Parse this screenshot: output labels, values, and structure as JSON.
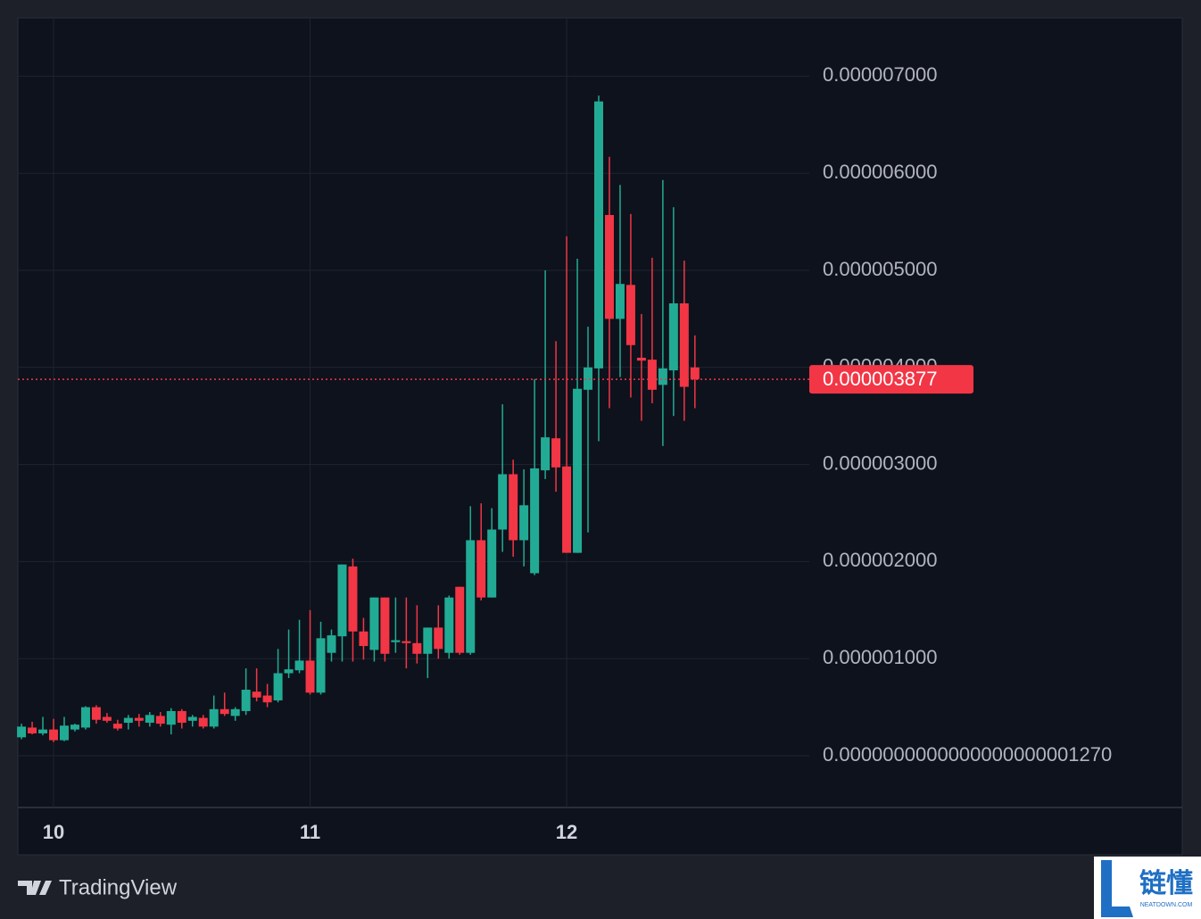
{
  "chart_data": {
    "type": "candlestick",
    "x": [
      -3,
      -2,
      -1,
      0,
      1,
      2,
      3,
      4,
      5,
      6,
      7,
      8,
      9,
      10,
      11,
      12,
      13,
      14,
      15,
      16,
      17,
      18,
      19,
      20,
      21,
      22,
      23,
      24,
      25,
      26,
      27,
      28,
      29,
      30,
      31,
      32,
      33,
      34,
      35,
      36,
      37,
      38,
      39,
      40,
      41,
      42,
      43,
      44,
      45,
      46,
      47,
      48,
      49,
      50,
      51,
      52,
      53,
      54,
      55,
      56,
      57,
      58,
      59,
      60
    ],
    "open": [
      1.9e-07,
      2.9e-07,
      2.3e-07,
      2.7e-07,
      1.6e-07,
      2.7e-07,
      2.9e-07,
      5e-07,
      4e-07,
      3.3e-07,
      3.4e-07,
      3.9e-07,
      3.4e-07,
      4.1e-07,
      3.2e-07,
      4.6e-07,
      3.6e-07,
      3.9e-07,
      3e-07,
      4.8e-07,
      4.1e-07,
      4.6e-07,
      6.6e-07,
      6.2e-07,
      5.7e-07,
      8.5e-07,
      8.8e-07,
      9.8e-07,
      6.5e-07,
      1.06e-06,
      1.23e-06,
      1.95e-06,
      1.28e-06,
      1.09e-06,
      1.63e-06,
      1.17e-06,
      1.18e-06,
      1.16e-06,
      1.05e-06,
      1.32e-06,
      1.06e-06,
      1.74e-06,
      1.06e-06,
      2.22e-06,
      1.63e-06,
      2.33e-06,
      2.9e-06,
      2.22e-06,
      1.88e-06,
      2.94e-06,
      3.27e-06,
      2.98e-06,
      2.09e-06,
      3.77e-06,
      3.99e-06,
      5.57e-06,
      4.5e-06,
      4.85e-06,
      4.1e-06,
      4.08e-06,
      3.82e-06,
      3.97e-06,
      4.66e-06,
      4e-06
    ],
    "high": [
      3.3e-07,
      3.5e-07,
      4e-07,
      3.8e-07,
      4e-07,
      3.3e-07,
      5.1e-07,
      5.2e-07,
      4.4e-07,
      3.7e-07,
      4.2e-07,
      4.3e-07,
      4.5e-07,
      4.5e-07,
      4.9e-07,
      4.8e-07,
      4.2e-07,
      4.2e-07,
      6.2e-07,
      6.5e-07,
      5e-07,
      9e-07,
      9e-07,
      7.4e-07,
      1.1e-06,
      1.3e-06,
      1.4e-06,
      1.5e-06,
      1.38e-06,
      1.3e-06,
      1.97e-06,
      2.03e-06,
      1.42e-06,
      1.63e-06,
      1.63e-06,
      1.63e-06,
      1.63e-06,
      1.55e-06,
      1.32e-06,
      1.55e-06,
      1.65e-06,
      1.74e-06,
      2.57e-06,
      2.6e-06,
      2.55e-06,
      3.62e-06,
      3.05e-06,
      2.95e-06,
      3.88e-06,
      5e-06,
      4.27e-06,
      5.35e-06,
      5.12e-06,
      4.42e-06,
      6.8e-06,
      6.17e-06,
      5.88e-06,
      5.58e-06,
      4.55e-06,
      5.13e-06,
      5.93e-06,
      5.65e-06,
      5.1e-06,
      4.33e-06
    ],
    "low": [
      1.7e-07,
      2.2e-07,
      2.1e-07,
      1.4e-07,
      1.5e-07,
      2.5e-07,
      2.7e-07,
      3.3e-07,
      3.4e-07,
      2.6e-07,
      2.7e-07,
      3e-07,
      3e-07,
      3e-07,
      2.2e-07,
      2.8e-07,
      3e-07,
      2.8e-07,
      2.8e-07,
      4.1e-07,
      3.6e-07,
      4.2e-07,
      5.6e-07,
      5e-07,
      5.5e-07,
      8e-07,
      8.5e-07,
      6.3e-07,
      6.3e-07,
      9.7e-07,
      9.7e-07,
      9.7e-07,
      9.9e-07,
      9.7e-07,
      9.7e-07,
      1.06e-06,
      9e-07,
      9.5e-07,
      8e-07,
      1e-06,
      1e-06,
      1.04e-06,
      1.04e-06,
      1.6e-06,
      1.63e-06,
      2.1e-06,
      2.05e-06,
      1.95e-06,
      1.86e-06,
      2.85e-06,
      2.72e-06,
      2.09e-06,
      2.09e-06,
      2.3e-06,
      3.24e-06,
      3.58e-06,
      3.9e-06,
      3.69e-06,
      3.45e-06,
      3.63e-06,
      3.19e-06,
      3.5e-06,
      3.45e-06,
      3.58e-06
    ],
    "close": [
      3e-07,
      2.3e-07,
      2.7e-07,
      1.6e-07,
      3.1e-07,
      3.2e-07,
      5e-07,
      3.7e-07,
      3.6e-07,
      2.8e-07,
      3.9e-07,
      3.6e-07,
      4.2e-07,
      3.3e-07,
      4.6e-07,
      3.4e-07,
      4e-07,
      3e-07,
      4.8e-07,
      4.3e-07,
      4.8e-07,
      6.8e-07,
      6e-07,
      5.5e-07,
      8.5e-07,
      8.9e-07,
      9.8e-07,
      6.5e-07,
      1.21e-06,
      1.24e-06,
      1.97e-06,
      1.28e-06,
      1.13e-06,
      1.63e-06,
      1.05e-06,
      1.19e-06,
      1.16e-06,
      1.05e-06,
      1.32e-06,
      1.1e-06,
      1.63e-06,
      1.06e-06,
      2.22e-06,
      1.63e-06,
      2.33e-06,
      2.9e-06,
      2.22e-06,
      2.58e-06,
      2.96e-06,
      3.28e-06,
      2.97e-06,
      2.09e-06,
      3.78e-06,
      4e-06,
      6.74e-06,
      4.5e-06,
      4.86e-06,
      4.23e-06,
      4.07e-06,
      3.77e-06,
      3.99e-06,
      4.66e-06,
      3.8e-06,
      3.877e-06
    ],
    "up_color": "#22ab94",
    "down_color": "#f23645",
    "xlim": [
      -3.34,
      70.7
    ],
    "xticks": [
      {
        "value": 0,
        "label": "10"
      },
      {
        "value": 24,
        "label": "11"
      },
      {
        "value": 48,
        "label": "12"
      }
    ],
    "ylim": [
      -5.33e-07,
      7.601e-06
    ],
    "yticks": [
      {
        "value": 1.27e-22,
        "label": "0.0000000000000000000001270"
      },
      {
        "value": 1e-06,
        "label": "0.000001000"
      },
      {
        "value": 2e-06,
        "label": "0.000002000"
      },
      {
        "value": 3e-06,
        "label": "0.000003000"
      },
      {
        "value": 4e-06,
        "label": "0.000004000"
      },
      {
        "value": 5e-06,
        "label": "0.000005000"
      },
      {
        "value": 6e-06,
        "label": "0.000006000"
      },
      {
        "value": 7e-06,
        "label": "0.000007000"
      }
    ],
    "grid": true,
    "last_price": {
      "value": 3.877e-06,
      "label": "0.000003877"
    }
  },
  "branding": "TradingView",
  "watermark": {
    "text": "链懂",
    "sub": "NEATDOWN.COM"
  }
}
